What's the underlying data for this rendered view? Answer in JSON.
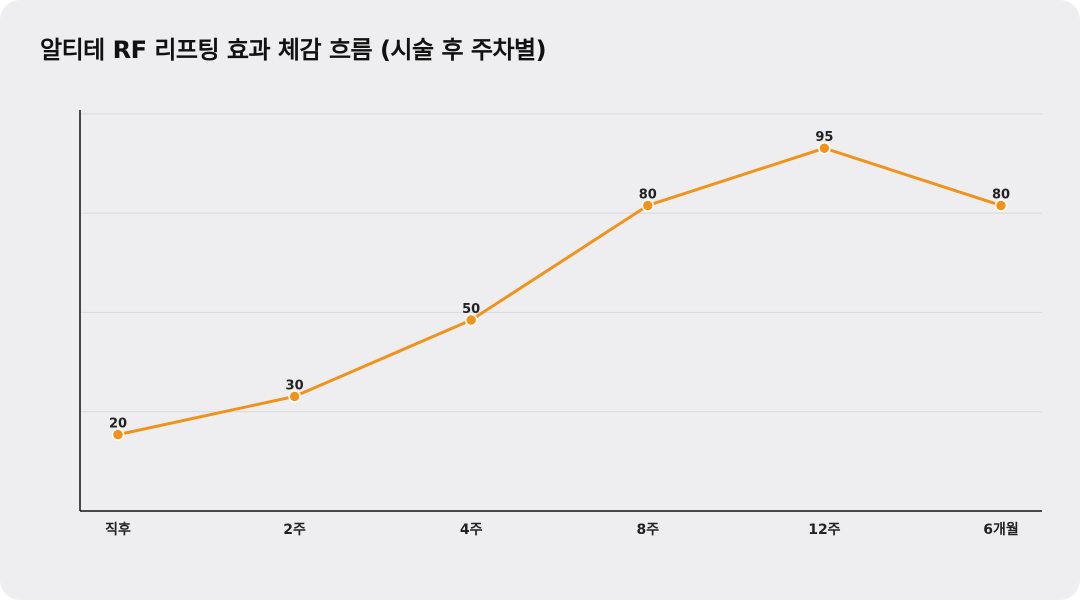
{
  "title": "알티테 RF 리프팅 효과 체감 흐름 (시술 후 주차별)",
  "chart_data": {
    "type": "line",
    "title": "알티테 RF 리프팅 효과 체감 흐름 (시술 후 주차별)",
    "categories": [
      "직후",
      "2주",
      "4주",
      "8주",
      "12주",
      "6개월"
    ],
    "series": [
      {
        "values": [
          20,
          30,
          50,
          80,
          95,
          80
        ]
      }
    ],
    "ylim": [
      0,
      105
    ],
    "y_gridlines": [
      26,
      52,
      78,
      104
    ],
    "grid": true,
    "data_labels": true,
    "line_color": "#F0931C",
    "marker_color": "#F0931C"
  }
}
